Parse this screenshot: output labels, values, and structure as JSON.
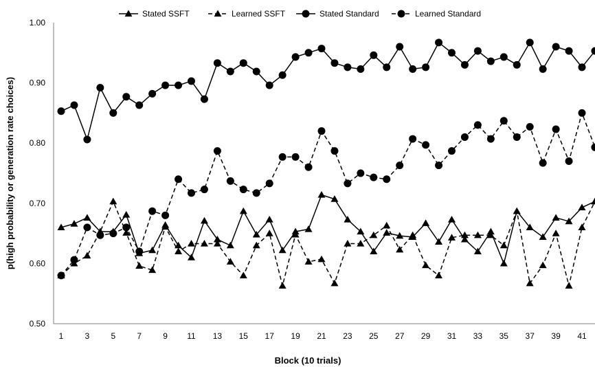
{
  "chart_data": {
    "type": "line",
    "title": "",
    "xlabel": "Block (10 trials)",
    "ylabel": "p(high  probability or generation rate choices)",
    "xlim": [
      1,
      42
    ],
    "ylim": [
      0.5,
      1.0
    ],
    "ytick_labels": [
      "0.50",
      "0.60",
      "0.70",
      "0.80",
      "0.90",
      "1.00"
    ],
    "xtick_labels": [
      "1",
      "3",
      "5",
      "7",
      "9",
      "11",
      "13",
      "15",
      "17",
      "19",
      "21",
      "23",
      "25",
      "27",
      "29",
      "31",
      "33",
      "35",
      "37",
      "39",
      "41"
    ],
    "legend_position": "top",
    "grid": false,
    "x": [
      1,
      2,
      3,
      4,
      5,
      6,
      7,
      8,
      9,
      10,
      11,
      12,
      13,
      14,
      15,
      16,
      17,
      18,
      19,
      20,
      21,
      22,
      23,
      24,
      25,
      26,
      27,
      28,
      29,
      30,
      31,
      32,
      33,
      34,
      35,
      36,
      37,
      38,
      39,
      40,
      41,
      42
    ],
    "series": [
      {
        "name": "Stated SSFT",
        "marker": "triangle",
        "dash": "solid",
        "values": [
          0.66,
          0.666,
          0.676,
          0.653,
          0.653,
          0.681,
          0.617,
          0.622,
          0.664,
          0.63,
          0.61,
          0.671,
          0.64,
          0.63,
          0.687,
          0.648,
          0.673,
          0.622,
          0.653,
          0.657,
          0.714,
          0.707,
          0.673,
          0.653,
          0.62,
          0.651,
          0.646,
          0.644,
          0.667,
          0.636,
          0.673,
          0.64,
          0.62,
          0.653,
          0.6,
          0.687,
          0.66,
          0.644,
          0.676,
          0.67,
          0.693,
          0.703
        ]
      },
      {
        "name": "Learned SSFT",
        "marker": "triangle",
        "dash": "dashed",
        "values": [
          0.58,
          0.6,
          0.613,
          0.653,
          0.703,
          0.651,
          0.596,
          0.589,
          0.661,
          0.62,
          0.633,
          0.633,
          0.633,
          0.603,
          0.58,
          0.63,
          0.65,
          0.563,
          0.648,
          0.603,
          0.607,
          0.567,
          0.633,
          0.633,
          0.647,
          0.663,
          0.623,
          0.647,
          0.597,
          0.58,
          0.643,
          0.647,
          0.647,
          0.647,
          0.63,
          0.687,
          0.567,
          0.597,
          0.65,
          0.563,
          0.66,
          0.703
        ]
      },
      {
        "name": "Stated Standard",
        "marker": "circle",
        "dash": "solid",
        "values": [
          0.853,
          0.863,
          0.806,
          0.892,
          0.85,
          0.877,
          0.863,
          0.882,
          0.896,
          0.896,
          0.903,
          0.873,
          0.933,
          0.919,
          0.933,
          0.919,
          0.896,
          0.913,
          0.943,
          0.95,
          0.957,
          0.933,
          0.926,
          0.923,
          0.946,
          0.926,
          0.96,
          0.923,
          0.926,
          0.967,
          0.95,
          0.93,
          0.953,
          0.936,
          0.943,
          0.93,
          0.967,
          0.923,
          0.96,
          0.953,
          0.926,
          0.953
        ]
      },
      {
        "name": "Learned Standard",
        "marker": "circle",
        "dash": "dashed",
        "values": [
          0.58,
          0.606,
          0.66,
          0.647,
          0.65,
          0.66,
          0.62,
          0.687,
          0.68,
          0.74,
          0.717,
          0.723,
          0.787,
          0.737,
          0.723,
          0.717,
          0.733,
          0.777,
          0.777,
          0.76,
          0.82,
          0.787,
          0.733,
          0.75,
          0.743,
          0.74,
          0.763,
          0.807,
          0.797,
          0.763,
          0.787,
          0.81,
          0.83,
          0.807,
          0.837,
          0.81,
          0.827,
          0.767,
          0.823,
          0.77,
          0.85,
          0.793
        ]
      }
    ]
  }
}
